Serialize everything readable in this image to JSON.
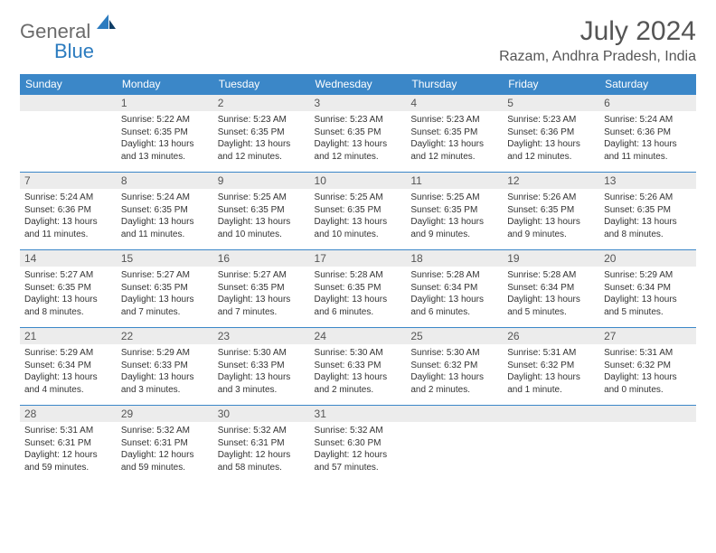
{
  "brand": {
    "general": "General",
    "blue": "Blue"
  },
  "title": "July 2024",
  "location": "Razam, Andhra Pradesh, India",
  "colors": {
    "header_bg": "#3b87c8",
    "daynum_bg": "#ececec",
    "rule": "#3b87c8",
    "logo_gray": "#6b6b6b",
    "logo_blue": "#2b7bbf"
  },
  "weekdays": [
    "Sunday",
    "Monday",
    "Tuesday",
    "Wednesday",
    "Thursday",
    "Friday",
    "Saturday"
  ],
  "start_offset": 1,
  "days": [
    {
      "n": 1,
      "sr": "5:22 AM",
      "ss": "6:35 PM",
      "dl": "13 hours and 13 minutes."
    },
    {
      "n": 2,
      "sr": "5:23 AM",
      "ss": "6:35 PM",
      "dl": "13 hours and 12 minutes."
    },
    {
      "n": 3,
      "sr": "5:23 AM",
      "ss": "6:35 PM",
      "dl": "13 hours and 12 minutes."
    },
    {
      "n": 4,
      "sr": "5:23 AM",
      "ss": "6:35 PM",
      "dl": "13 hours and 12 minutes."
    },
    {
      "n": 5,
      "sr": "5:23 AM",
      "ss": "6:36 PM",
      "dl": "13 hours and 12 minutes."
    },
    {
      "n": 6,
      "sr": "5:24 AM",
      "ss": "6:36 PM",
      "dl": "13 hours and 11 minutes."
    },
    {
      "n": 7,
      "sr": "5:24 AM",
      "ss": "6:36 PM",
      "dl": "13 hours and 11 minutes."
    },
    {
      "n": 8,
      "sr": "5:24 AM",
      "ss": "6:35 PM",
      "dl": "13 hours and 11 minutes."
    },
    {
      "n": 9,
      "sr": "5:25 AM",
      "ss": "6:35 PM",
      "dl": "13 hours and 10 minutes."
    },
    {
      "n": 10,
      "sr": "5:25 AM",
      "ss": "6:35 PM",
      "dl": "13 hours and 10 minutes."
    },
    {
      "n": 11,
      "sr": "5:25 AM",
      "ss": "6:35 PM",
      "dl": "13 hours and 9 minutes."
    },
    {
      "n": 12,
      "sr": "5:26 AM",
      "ss": "6:35 PM",
      "dl": "13 hours and 9 minutes."
    },
    {
      "n": 13,
      "sr": "5:26 AM",
      "ss": "6:35 PM",
      "dl": "13 hours and 8 minutes."
    },
    {
      "n": 14,
      "sr": "5:27 AM",
      "ss": "6:35 PM",
      "dl": "13 hours and 8 minutes."
    },
    {
      "n": 15,
      "sr": "5:27 AM",
      "ss": "6:35 PM",
      "dl": "13 hours and 7 minutes."
    },
    {
      "n": 16,
      "sr": "5:27 AM",
      "ss": "6:35 PM",
      "dl": "13 hours and 7 minutes."
    },
    {
      "n": 17,
      "sr": "5:28 AM",
      "ss": "6:35 PM",
      "dl": "13 hours and 6 minutes."
    },
    {
      "n": 18,
      "sr": "5:28 AM",
      "ss": "6:34 PM",
      "dl": "13 hours and 6 minutes."
    },
    {
      "n": 19,
      "sr": "5:28 AM",
      "ss": "6:34 PM",
      "dl": "13 hours and 5 minutes."
    },
    {
      "n": 20,
      "sr": "5:29 AM",
      "ss": "6:34 PM",
      "dl": "13 hours and 5 minutes."
    },
    {
      "n": 21,
      "sr": "5:29 AM",
      "ss": "6:34 PM",
      "dl": "13 hours and 4 minutes."
    },
    {
      "n": 22,
      "sr": "5:29 AM",
      "ss": "6:33 PM",
      "dl": "13 hours and 3 minutes."
    },
    {
      "n": 23,
      "sr": "5:30 AM",
      "ss": "6:33 PM",
      "dl": "13 hours and 3 minutes."
    },
    {
      "n": 24,
      "sr": "5:30 AM",
      "ss": "6:33 PM",
      "dl": "13 hours and 2 minutes."
    },
    {
      "n": 25,
      "sr": "5:30 AM",
      "ss": "6:32 PM",
      "dl": "13 hours and 2 minutes."
    },
    {
      "n": 26,
      "sr": "5:31 AM",
      "ss": "6:32 PM",
      "dl": "13 hours and 1 minute."
    },
    {
      "n": 27,
      "sr": "5:31 AM",
      "ss": "6:32 PM",
      "dl": "13 hours and 0 minutes."
    },
    {
      "n": 28,
      "sr": "5:31 AM",
      "ss": "6:31 PM",
      "dl": "12 hours and 59 minutes."
    },
    {
      "n": 29,
      "sr": "5:32 AM",
      "ss": "6:31 PM",
      "dl": "12 hours and 59 minutes."
    },
    {
      "n": 30,
      "sr": "5:32 AM",
      "ss": "6:31 PM",
      "dl": "12 hours and 58 minutes."
    },
    {
      "n": 31,
      "sr": "5:32 AM",
      "ss": "6:30 PM",
      "dl": "12 hours and 57 minutes."
    }
  ]
}
